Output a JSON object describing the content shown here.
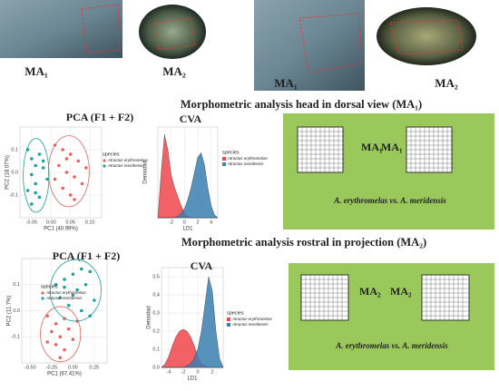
{
  "photo_labels": [
    "MA₁",
    "MA₂",
    "MA₁",
    "MA₂"
  ],
  "headings": [
    "Morphometric analysis head in dorsal view (MA₁)",
    "Morphometric analysis rostral in projection (MA₂)"
  ],
  "panels": [
    {
      "labels": [
        "MA₁",
        "MA₁"
      ],
      "caption": "A. erythromelas vs. A. meridensis"
    },
    {
      "labels": [
        "MA₂",
        "MA₂"
      ],
      "caption": "A. erythromelas vs. A. meridensis"
    }
  ],
  "chart_data": [
    {
      "type": "scatter",
      "title": "PCA (F1 + F2)",
      "xlabel": "PC1 (40.99%)",
      "ylabel": "PC2 (18.07%)",
      "legend_title": "species",
      "xlim": [
        -0.08,
        0.13
      ],
      "ylim": [
        -0.2,
        0.2
      ],
      "xticks": [
        {
          "value": -0.05,
          "label": "-0.05"
        },
        {
          "value": 0,
          "label": "0.00"
        },
        {
          "value": 0.05,
          "label": "0.05"
        },
        {
          "value": 0.1,
          "label": "0.10"
        }
      ],
      "yticks": [
        -0.1,
        {
          "value": 0,
          "label": "0.0"
        },
        0.1
      ],
      "series": [
        {
          "name": "Atractus erythromelas",
          "color": "#e8625f",
          "x": [
            0.01,
            0.03,
            0.05,
            0.07,
            0.02,
            0.04,
            0.06,
            0.08,
            0.03,
            0.05,
            0.09,
            0.01,
            0.04,
            0.06
          ],
          "y": [
            0.12,
            0.1,
            0.08,
            0.05,
            0.03,
            0.0,
            -0.02,
            -0.05,
            -0.07,
            -0.1,
            0.02,
            -0.03,
            0.06,
            -0.12
          ]
        },
        {
          "name": "Atractus meridensis",
          "color": "#1aa39a",
          "x": [
            -0.06,
            -0.05,
            -0.04,
            -0.03,
            -0.05,
            -0.02,
            -0.04,
            -0.06,
            -0.03,
            -0.01,
            -0.05,
            -0.02,
            -0.04
          ],
          "y": [
            0.1,
            0.06,
            0.03,
            0.08,
            -0.01,
            0.02,
            -0.05,
            -0.08,
            -0.11,
            -0.03,
            -0.14,
            0.05,
            -0.09
          ]
        }
      ]
    },
    {
      "type": "area",
      "title": "CVA",
      "xlabel": "LD1",
      "ylabel": "Densidad",
      "legend_title": "species",
      "xlim": [
        -4,
        5
      ],
      "ylim": [
        0,
        0.6
      ],
      "xticks": [
        -2,
        0,
        2,
        4
      ],
      "yticks": [],
      "x": [
        -4,
        -3.5,
        -3,
        -2.5,
        -2,
        -1.5,
        -1,
        -0.5,
        0,
        0.5,
        1,
        1.5,
        2,
        2.5,
        3,
        3.5,
        4,
        4.5,
        5
      ],
      "series": [
        {
          "name": "Atractus erythromelas",
          "color": "#f0454a",
          "values": [
            0,
            0.3,
            0.55,
            0.45,
            0.28,
            0.2,
            0.14,
            0.08,
            0.03,
            0.01,
            0,
            0,
            0,
            0,
            0,
            0,
            0,
            0,
            0
          ]
        },
        {
          "name": "Atractus meridensis",
          "color": "#3a7fb0",
          "values": [
            0,
            0,
            0,
            0,
            0,
            0,
            0.01,
            0.03,
            0.06,
            0.12,
            0.2,
            0.3,
            0.4,
            0.43,
            0.35,
            0.2,
            0.08,
            0.02,
            0
          ]
        }
      ]
    },
    {
      "type": "scatter",
      "title": "PCA (F1 + F2)",
      "xlabel": "PC1 (67.41%)",
      "ylabel": "PC2 (11.7%)",
      "legend_title": "species",
      "xlim": [
        -0.6,
        0.4
      ],
      "ylim": [
        -0.2,
        0.2
      ],
      "xticks": [
        {
          "value": -0.5,
          "label": "-0.50"
        },
        {
          "value": -0.25,
          "label": "-0.25"
        },
        {
          "value": 0,
          "label": "0.00"
        },
        {
          "value": 0.25,
          "label": "0.25"
        }
      ],
      "yticks": [
        -0.1,
        {
          "value": 0,
          "label": "0.0"
        },
        0.1
      ],
      "series": [
        {
          "name": "Atractus erythromelas",
          "color": "#e8625f",
          "x": [
            -0.3,
            -0.2,
            -0.1,
            -0.25,
            -0.15,
            -0.05,
            -0.2,
            -0.1,
            0.0,
            -0.3,
            -0.15,
            0.05
          ],
          "y": [
            -0.02,
            -0.05,
            -0.03,
            -0.08,
            -0.1,
            -0.07,
            -0.13,
            -0.15,
            -0.11,
            -0.12,
            -0.18,
            -0.04
          ]
        },
        {
          "name": "Atractus meridensis",
          "color": "#1aa39a",
          "x": [
            -0.2,
            -0.1,
            0.0,
            0.1,
            0.2,
            -0.15,
            0.05,
            0.15,
            0.25,
            -0.05,
            0.1,
            0.2,
            0.0,
            -0.1
          ],
          "y": [
            0.1,
            0.12,
            0.14,
            0.16,
            0.15,
            0.05,
            0.08,
            0.1,
            0.04,
            0.02,
            0.0,
            -0.02,
            0.06,
            0.09
          ]
        }
      ]
    },
    {
      "type": "area",
      "title": "CVA",
      "xlabel": "LD1",
      "ylabel": "Densidad",
      "legend_title": "species",
      "xlim": [
        -5,
        3.5
      ],
      "ylim": [
        0,
        0.55
      ],
      "xticks": [
        -4,
        -2,
        0,
        2
      ],
      "yticks": [
        {
          "value": 0,
          "label": "0.0"
        },
        0.1,
        0.2,
        0.3,
        0.4,
        0.5
      ],
      "x": [
        -5,
        -4.5,
        -4,
        -3.5,
        -3,
        -2.5,
        -2,
        -1.5,
        -1,
        -0.5,
        0,
        0.5,
        1,
        1.5,
        2,
        2.5,
        3,
        3.5
      ],
      "series": [
        {
          "name": "Atractus erythromelas",
          "color": "#f0454a",
          "values": [
            0,
            0.02,
            0.06,
            0.12,
            0.17,
            0.2,
            0.21,
            0.2,
            0.17,
            0.12,
            0.06,
            0.02,
            0.01,
            0,
            0,
            0,
            0,
            0
          ]
        },
        {
          "name": "Atractus meridensis",
          "color": "#3a7fb0",
          "values": [
            0,
            0,
            0,
            0,
            0,
            0,
            0,
            0.01,
            0.02,
            0.05,
            0.1,
            0.2,
            0.35,
            0.5,
            0.42,
            0.2,
            0.05,
            0
          ]
        }
      ]
    }
  ]
}
